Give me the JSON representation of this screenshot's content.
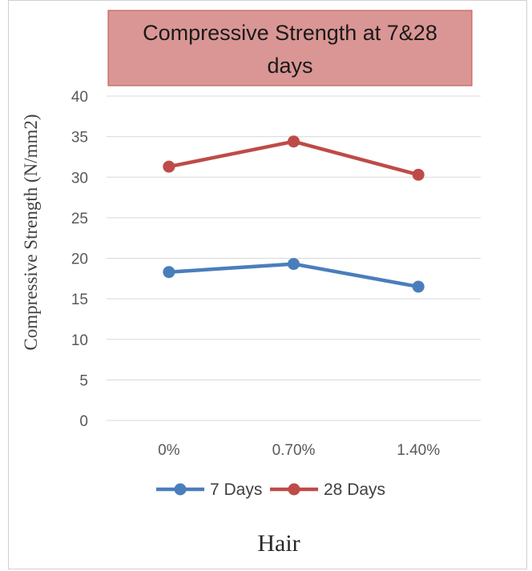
{
  "chart_data": {
    "type": "line",
    "title_lines": [
      "Compressive Strength at 7&28",
      "days"
    ],
    "xlabel": "Hair",
    "ylabel": "Compressive Strength (N/mm2)",
    "categories": [
      "0%",
      "0.70%",
      "1.40%"
    ],
    "ylim": [
      0,
      40
    ],
    "yticks": [
      0,
      5,
      10,
      15,
      20,
      25,
      30,
      35,
      40
    ],
    "grid": true,
    "legend_position": "bottom",
    "series": [
      {
        "name": "7 Days",
        "values": [
          18.3,
          19.3,
          16.5
        ],
        "color": "#4a7ebb"
      },
      {
        "name": "28 Days",
        "values": [
          31.3,
          34.4,
          30.3
        ],
        "color": "#be4b48"
      }
    ]
  },
  "colors": {
    "title_box_fill": "#da9694",
    "title_box_border": "#c0504d",
    "grid": "#d9d9d9"
  }
}
